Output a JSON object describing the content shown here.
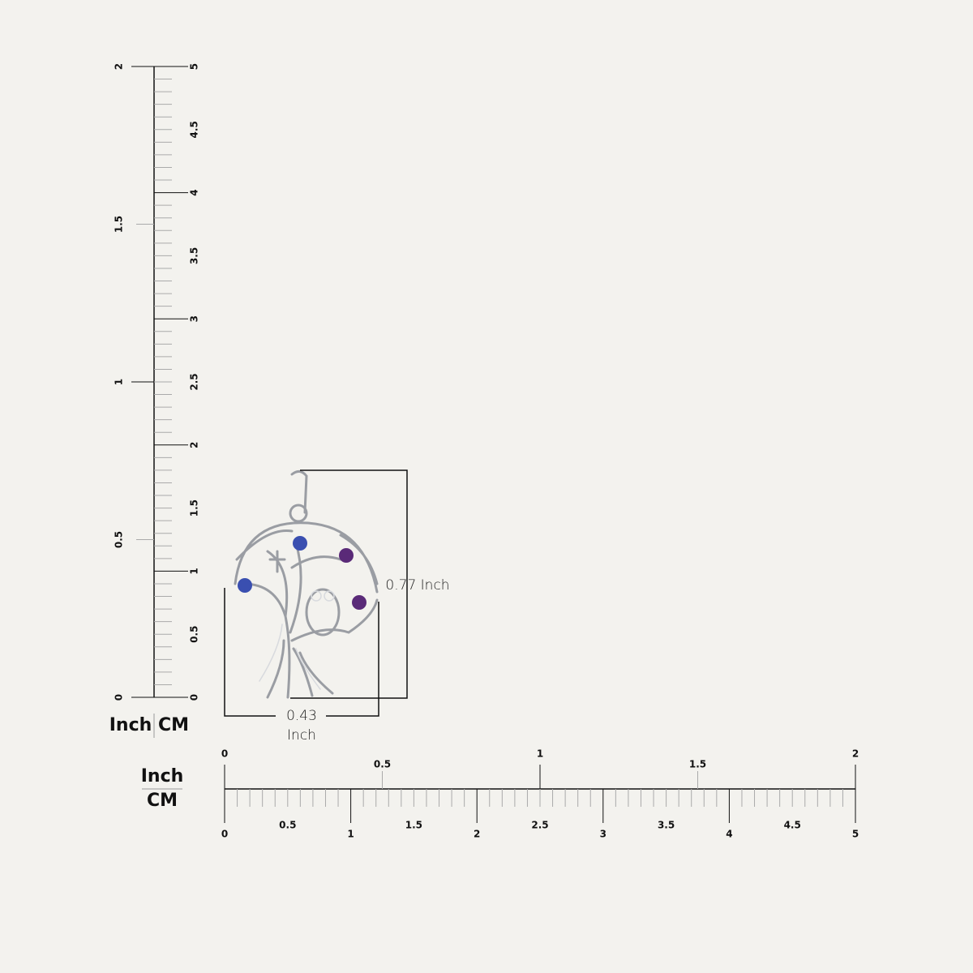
{
  "vertical_ruler": {
    "inch_labels": [
      0,
      0.5,
      1,
      1.5,
      2
    ],
    "cm_labels": [
      0,
      0.5,
      1,
      1.5,
      2,
      2.5,
      3,
      3.5,
      4,
      4.5,
      5
    ],
    "unit_inch": "Inch",
    "unit_cm": "CM"
  },
  "horizontal_ruler": {
    "inch_labels": [
      0,
      0.5,
      1,
      1.5,
      2
    ],
    "cm_labels": [
      0,
      0.5,
      1,
      1.5,
      2,
      2.5,
      3,
      3.5,
      4,
      4.5,
      5
    ],
    "unit_inch": "Inch",
    "unit_cm": "CM"
  },
  "dimensions": {
    "height": "0.77 Inch",
    "width_value": "0.43",
    "width_unit": "Inch"
  }
}
